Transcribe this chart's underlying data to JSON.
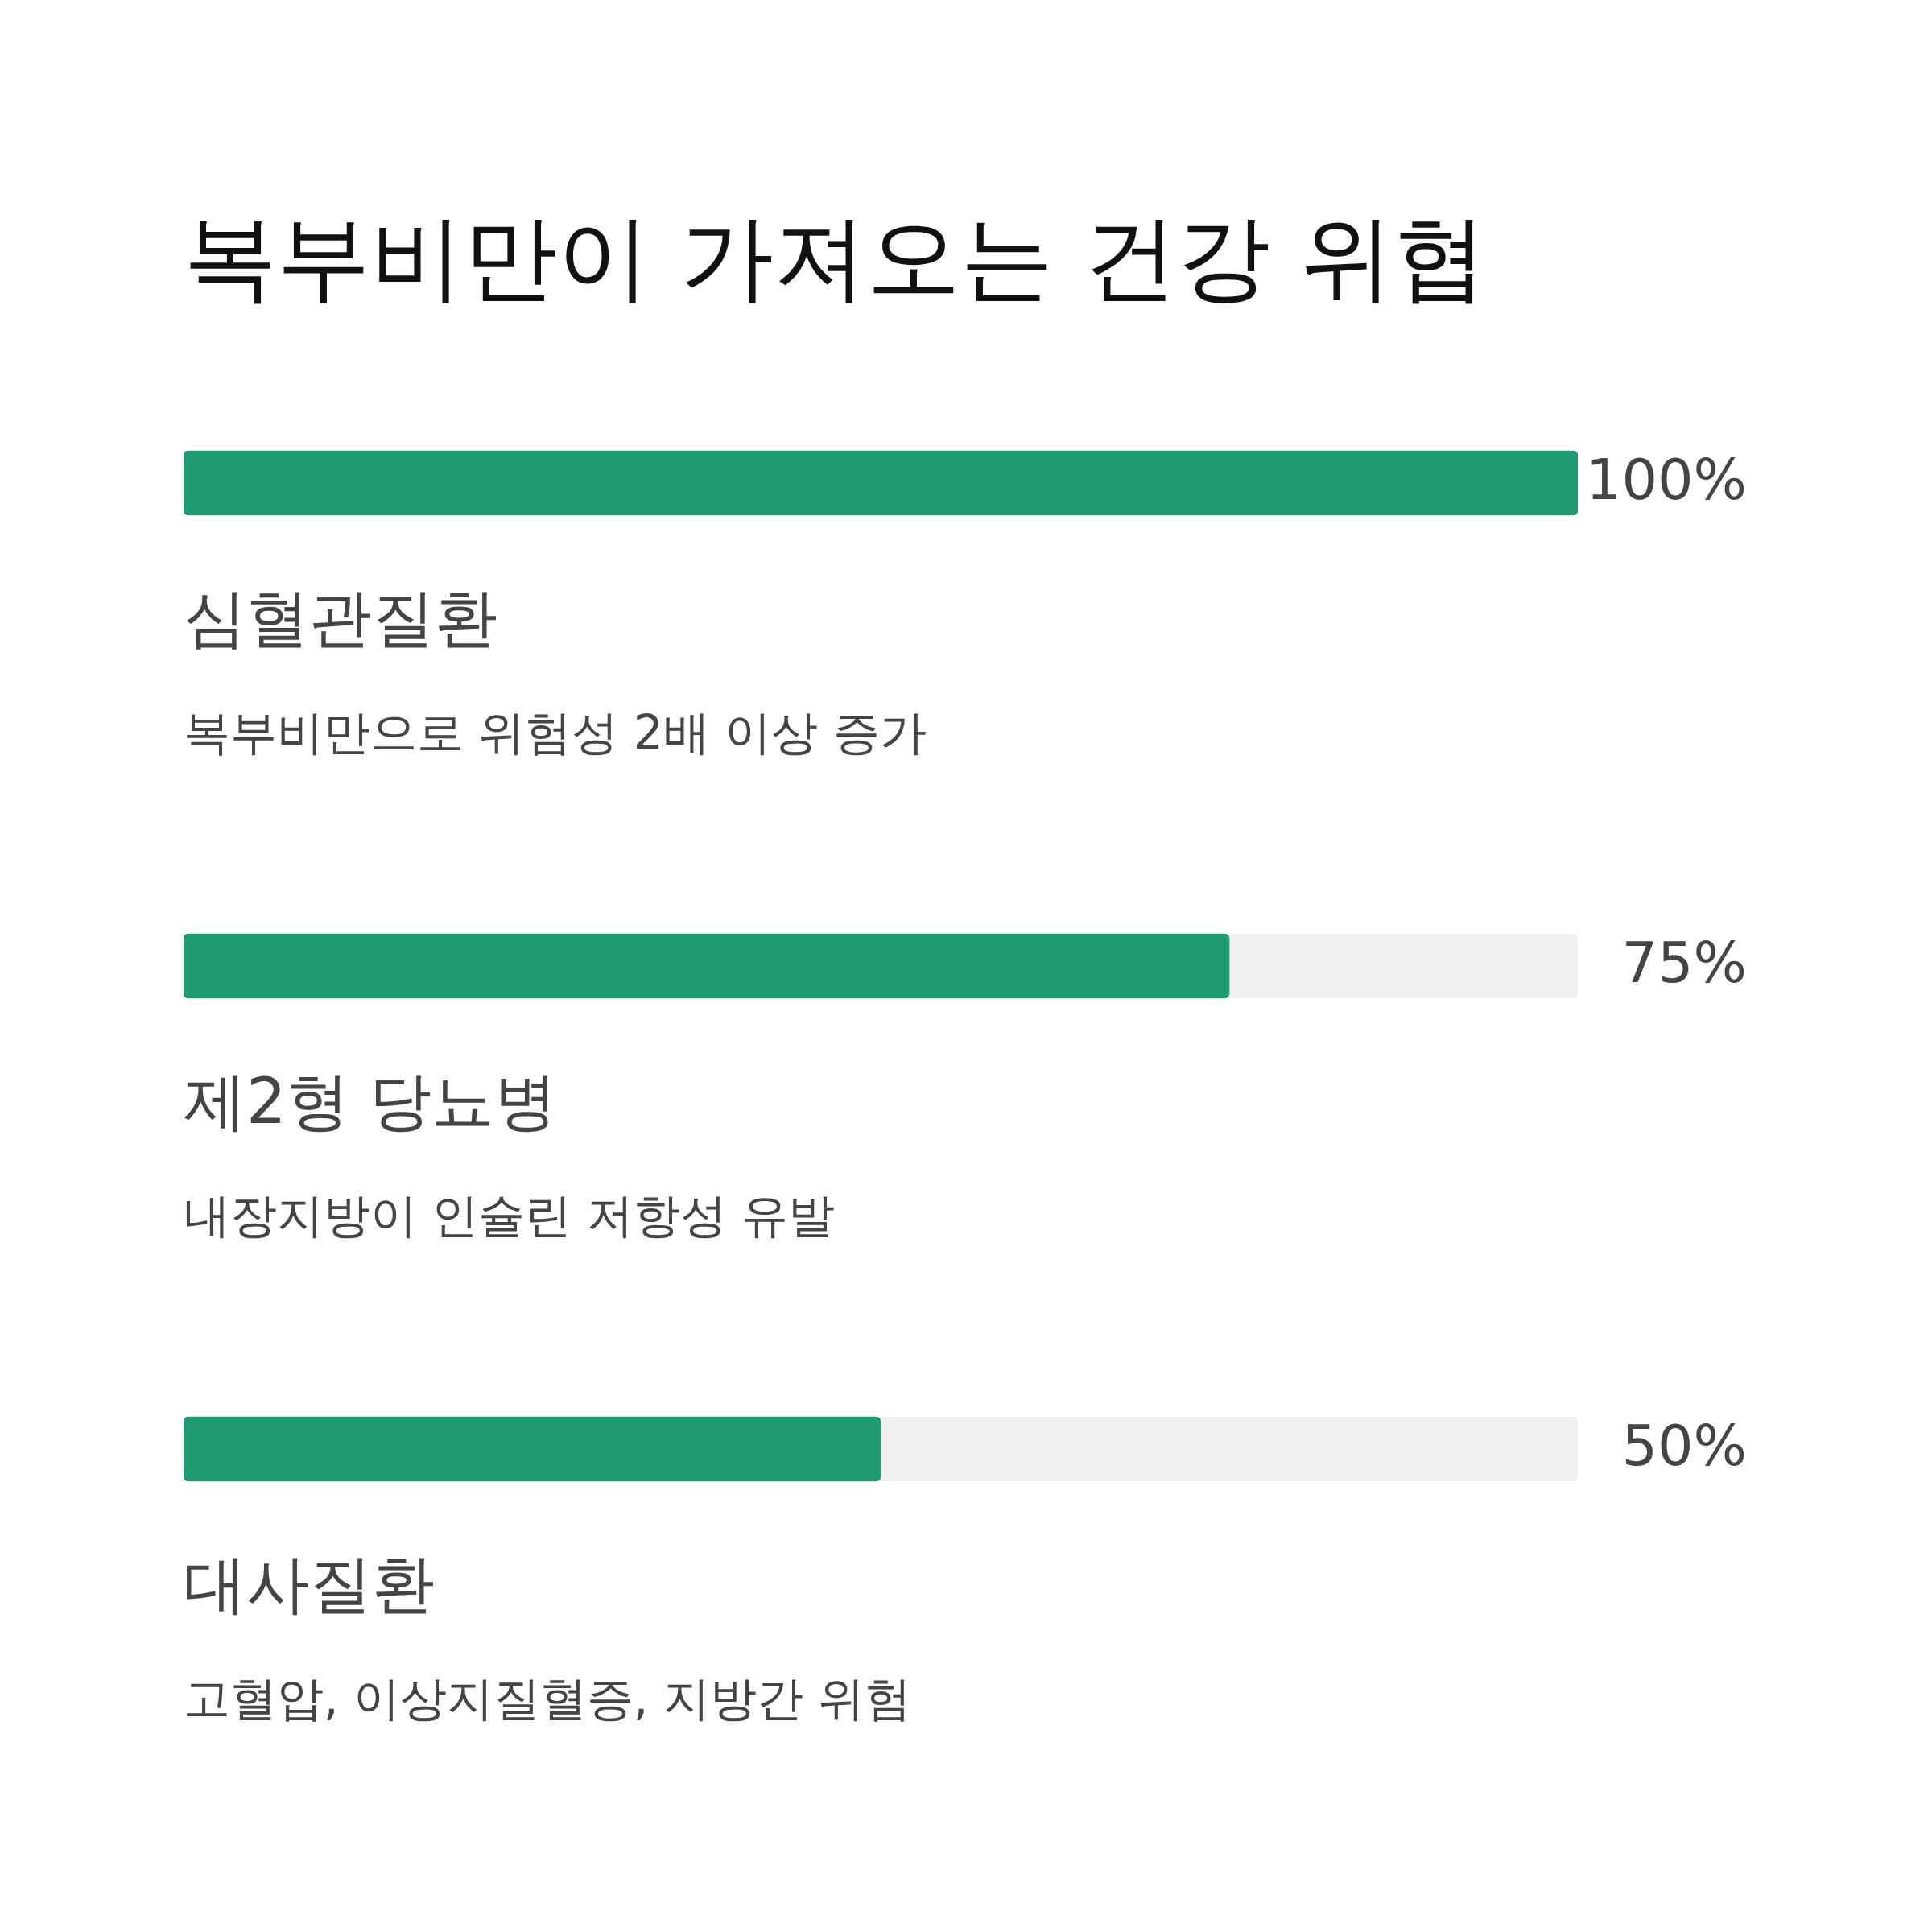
{
  "chart_data": {
    "type": "bar",
    "orientation": "horizontal",
    "title": "복부비만이 가져오는 건강 위협",
    "categories": [
      "심혈관질환",
      "제2형 당뇨병",
      "대사질환"
    ],
    "values": [
      100,
      75,
      50
    ],
    "color": "#1f9a72",
    "value_labels": [
      "100%",
      "75%",
      "50%"
    ],
    "xlim": [
      0,
      100
    ],
    "tick_labels": false,
    "grid": false,
    "legend": false,
    "annotations": [
      "복부비만으로 위험성 2배 이상 증가",
      "내장지방이 인슐린 저항성 유발",
      "고혈압, 이상지질혈증, 지방간 위험"
    ]
  }
}
